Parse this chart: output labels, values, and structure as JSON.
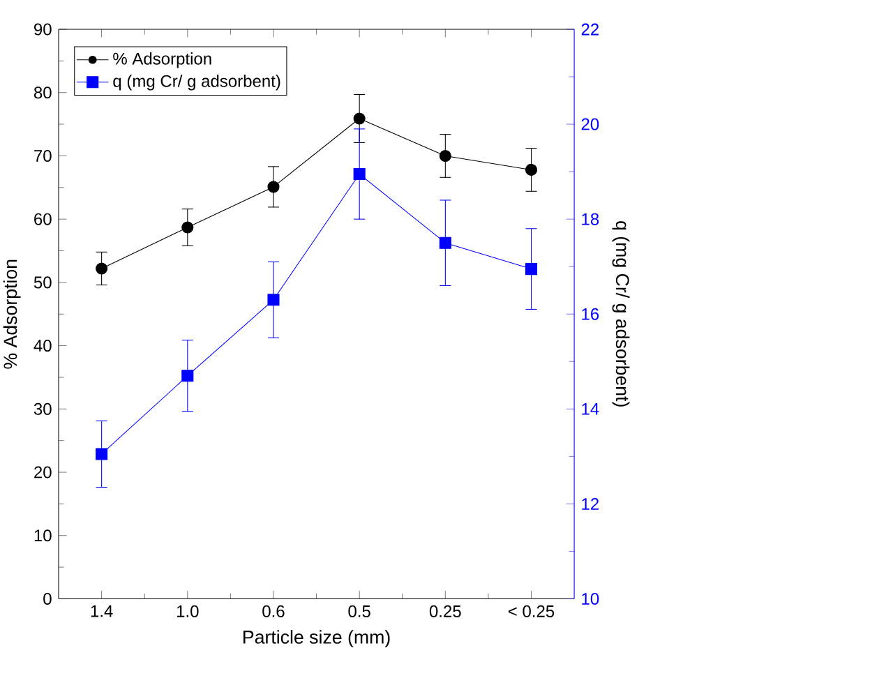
{
  "chart_data": {
    "type": "line",
    "xlabel": "Particle size (mm)",
    "ylabel": "% Adsorption",
    "y2label": "q (mg Cr/ g adsorbent)",
    "categories": [
      "1.4",
      "1.0",
      "0.6",
      "0.5",
      "0.25",
      "< 0.25"
    ],
    "series": [
      {
        "name": "% Adsorption",
        "color": "#000000",
        "marker": "circle",
        "values": [
          52.2,
          58.7,
          65.1,
          75.9,
          70.0,
          67.8
        ],
        "errors": [
          2.6,
          2.9,
          3.2,
          3.8,
          3.4,
          3.4
        ]
      },
      {
        "name": "q (mg Cr/ g adsorbent)",
        "color": "#0000ff",
        "marker": "square",
        "axis": "y2",
        "values": [
          13.05,
          14.7,
          16.3,
          18.95,
          17.5,
          16.95
        ],
        "errors": [
          0.7,
          0.75,
          0.8,
          0.95,
          0.9,
          0.85
        ]
      }
    ],
    "ylim": [
      0,
      90
    ],
    "yticks": [
      0,
      10,
      20,
      30,
      40,
      50,
      60,
      70,
      80,
      90
    ],
    "y2lim": [
      10,
      22
    ],
    "y2ticks": [
      10,
      12,
      14,
      16,
      18,
      20,
      22
    ],
    "legend": "top left",
    "grid": false,
    "line_style": "solid"
  }
}
